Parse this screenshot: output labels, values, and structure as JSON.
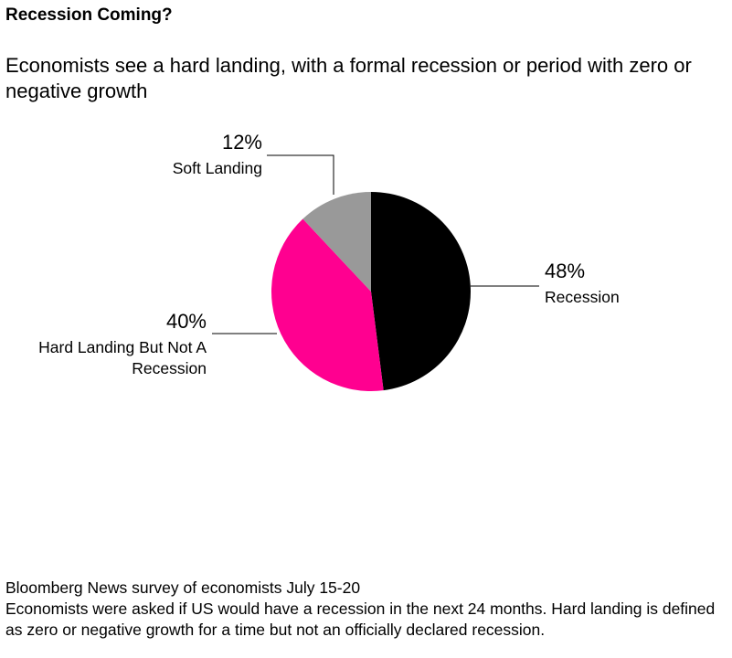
{
  "chart_data": {
    "type": "pie",
    "title": "Recession Coming?",
    "subtitle": "Economists see a hard landing, with a formal recession or period with zero or negative growth",
    "categories": [
      "Recession",
      "Hard Landing But Not A Recession",
      "Soft Landing"
    ],
    "values": [
      48,
      40,
      12
    ],
    "value_labels": [
      "48%",
      "40%",
      "12%"
    ],
    "colors": [
      "#000000",
      "#ff0090",
      "#999999"
    ],
    "source": "Bloomberg News survey of economists July 15-20",
    "note": "Economists were asked if US would have a recession in the next 24 months. Hard landing is defined as zero or negative growth for a time but not an officially declared recession."
  }
}
